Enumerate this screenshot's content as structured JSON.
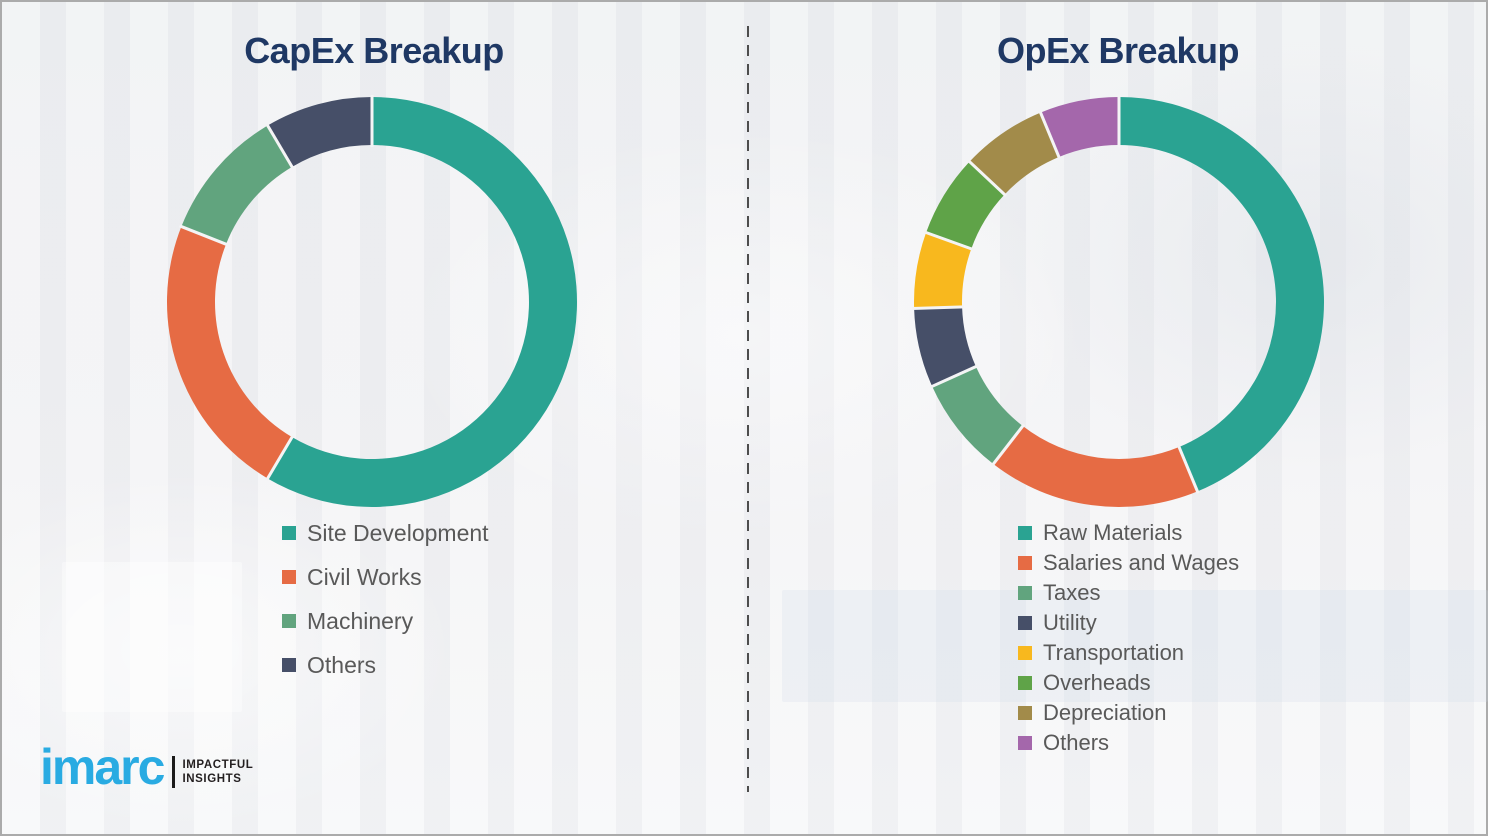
{
  "colors": {
    "title_navy": "#1F3864",
    "legend_text": "#595959",
    "brand_blue": "#29ABE2",
    "divider_grey": "#4d4d4d"
  },
  "logo": {
    "brand": "imarc",
    "tagline_line1": "IMPACTFUL",
    "tagline_line2": "INSIGHTS"
  },
  "chart_data": [
    {
      "type": "pie",
      "subtype": "donut",
      "title": "CapEx Breakup",
      "labels": [
        "Site Development",
        "Civil Works",
        "Machinery",
        "Others"
      ],
      "values": [
        58.5,
        22.5,
        10.5,
        8.5
      ],
      "unit": "percent",
      "colors": [
        "#2AA392",
        "#E66B44",
        "#61A47E",
        "#464F68"
      ],
      "start_angle_deg": 0,
      "direction": "clockwise",
      "legend_position": "below-left"
    },
    {
      "type": "pie",
      "subtype": "donut",
      "title": "OpEx Breakup",
      "labels": [
        "Raw Materials",
        "Salaries and Wages",
        "Taxes",
        "Utility",
        "Transportation",
        "Overheads",
        "Depreciation",
        "Others"
      ],
      "values": [
        43.75,
        16.75,
        7.75,
        6.25,
        6.0,
        6.5,
        6.75,
        6.25
      ],
      "unit": "percent",
      "colors": [
        "#2AA392",
        "#E66B44",
        "#61A47E",
        "#464F68",
        "#F8B81E",
        "#5FA348",
        "#A28B4A",
        "#A467AB"
      ],
      "start_angle_deg": 0,
      "direction": "clockwise",
      "legend_position": "below-left"
    }
  ]
}
